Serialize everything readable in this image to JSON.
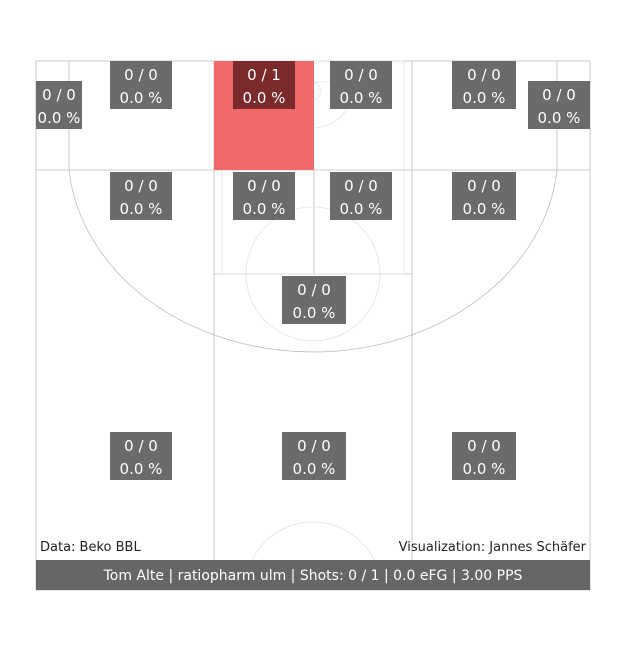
{
  "chart_data": {
    "type": "heatmap",
    "zones": [
      {
        "id": "left-corner-three",
        "made": 0,
        "attempts": 1e-09,
        "label_top": "0 / 0",
        "label_bottom": "0.0 %"
      },
      {
        "id": "left-top-three",
        "made": 0,
        "attempts": 0,
        "label_top": "0 / 0",
        "label_bottom": "0.0 %"
      },
      {
        "id": "paint-left-upper",
        "made": 0,
        "attempts": 1,
        "label_top": "0 / 1",
        "label_bottom": "0.0 %"
      },
      {
        "id": "right-top-inner",
        "made": 0,
        "attempts": 0,
        "label_top": "0 / 0",
        "label_bottom": "0.0 %"
      },
      {
        "id": "right-top-three",
        "made": 0,
        "attempts": 0,
        "label_top": "0 / 0",
        "label_bottom": "0.0 %"
      },
      {
        "id": "right-corner-three",
        "made": 0,
        "attempts": 0,
        "label_top": "0 / 0",
        "label_bottom": "0.0 %"
      },
      {
        "id": "left-wing-mid",
        "made": 0,
        "attempts": 0,
        "label_top": "0 / 0",
        "label_bottom": "0.0 %"
      },
      {
        "id": "paint-left-lower",
        "made": 0,
        "attempts": 0,
        "label_top": "0 / 0",
        "label_bottom": "0.0 %"
      },
      {
        "id": "paint-right-lower",
        "made": 0,
        "attempts": 0,
        "label_top": "0 / 0",
        "label_bottom": "0.0 %"
      },
      {
        "id": "right-wing-mid",
        "made": 0,
        "attempts": 0,
        "label_top": "0 / 0",
        "label_bottom": "0.0 %"
      },
      {
        "id": "top-key",
        "made": 0,
        "attempts": 0,
        "label_top": "0 / 0",
        "label_bottom": "0.0 %"
      },
      {
        "id": "left-wing-three",
        "made": 0,
        "attempts": 0,
        "label_top": "0 / 0",
        "label_bottom": "0.0 %"
      },
      {
        "id": "top-three",
        "made": 0,
        "attempts": 0,
        "label_top": "0 / 0",
        "label_bottom": "0.0 %"
      },
      {
        "id": "right-wing-three",
        "made": 0,
        "attempts": 0,
        "label_top": "0 / 0",
        "label_bottom": "0.0 %"
      }
    ],
    "highlight_color": "#f06a6a",
    "label_bg_color": "#6b6b6b",
    "footer_bg_color": "#666666"
  },
  "credits": {
    "data_source": "Data: Beko BBL",
    "visualization": "Visualization: Jannes Schäfer"
  },
  "footer": {
    "summary": "Tom Alte | ratiopharm ulm | Shots: 0 / 1 | 0.0 eFG | 3.00 PPS"
  }
}
